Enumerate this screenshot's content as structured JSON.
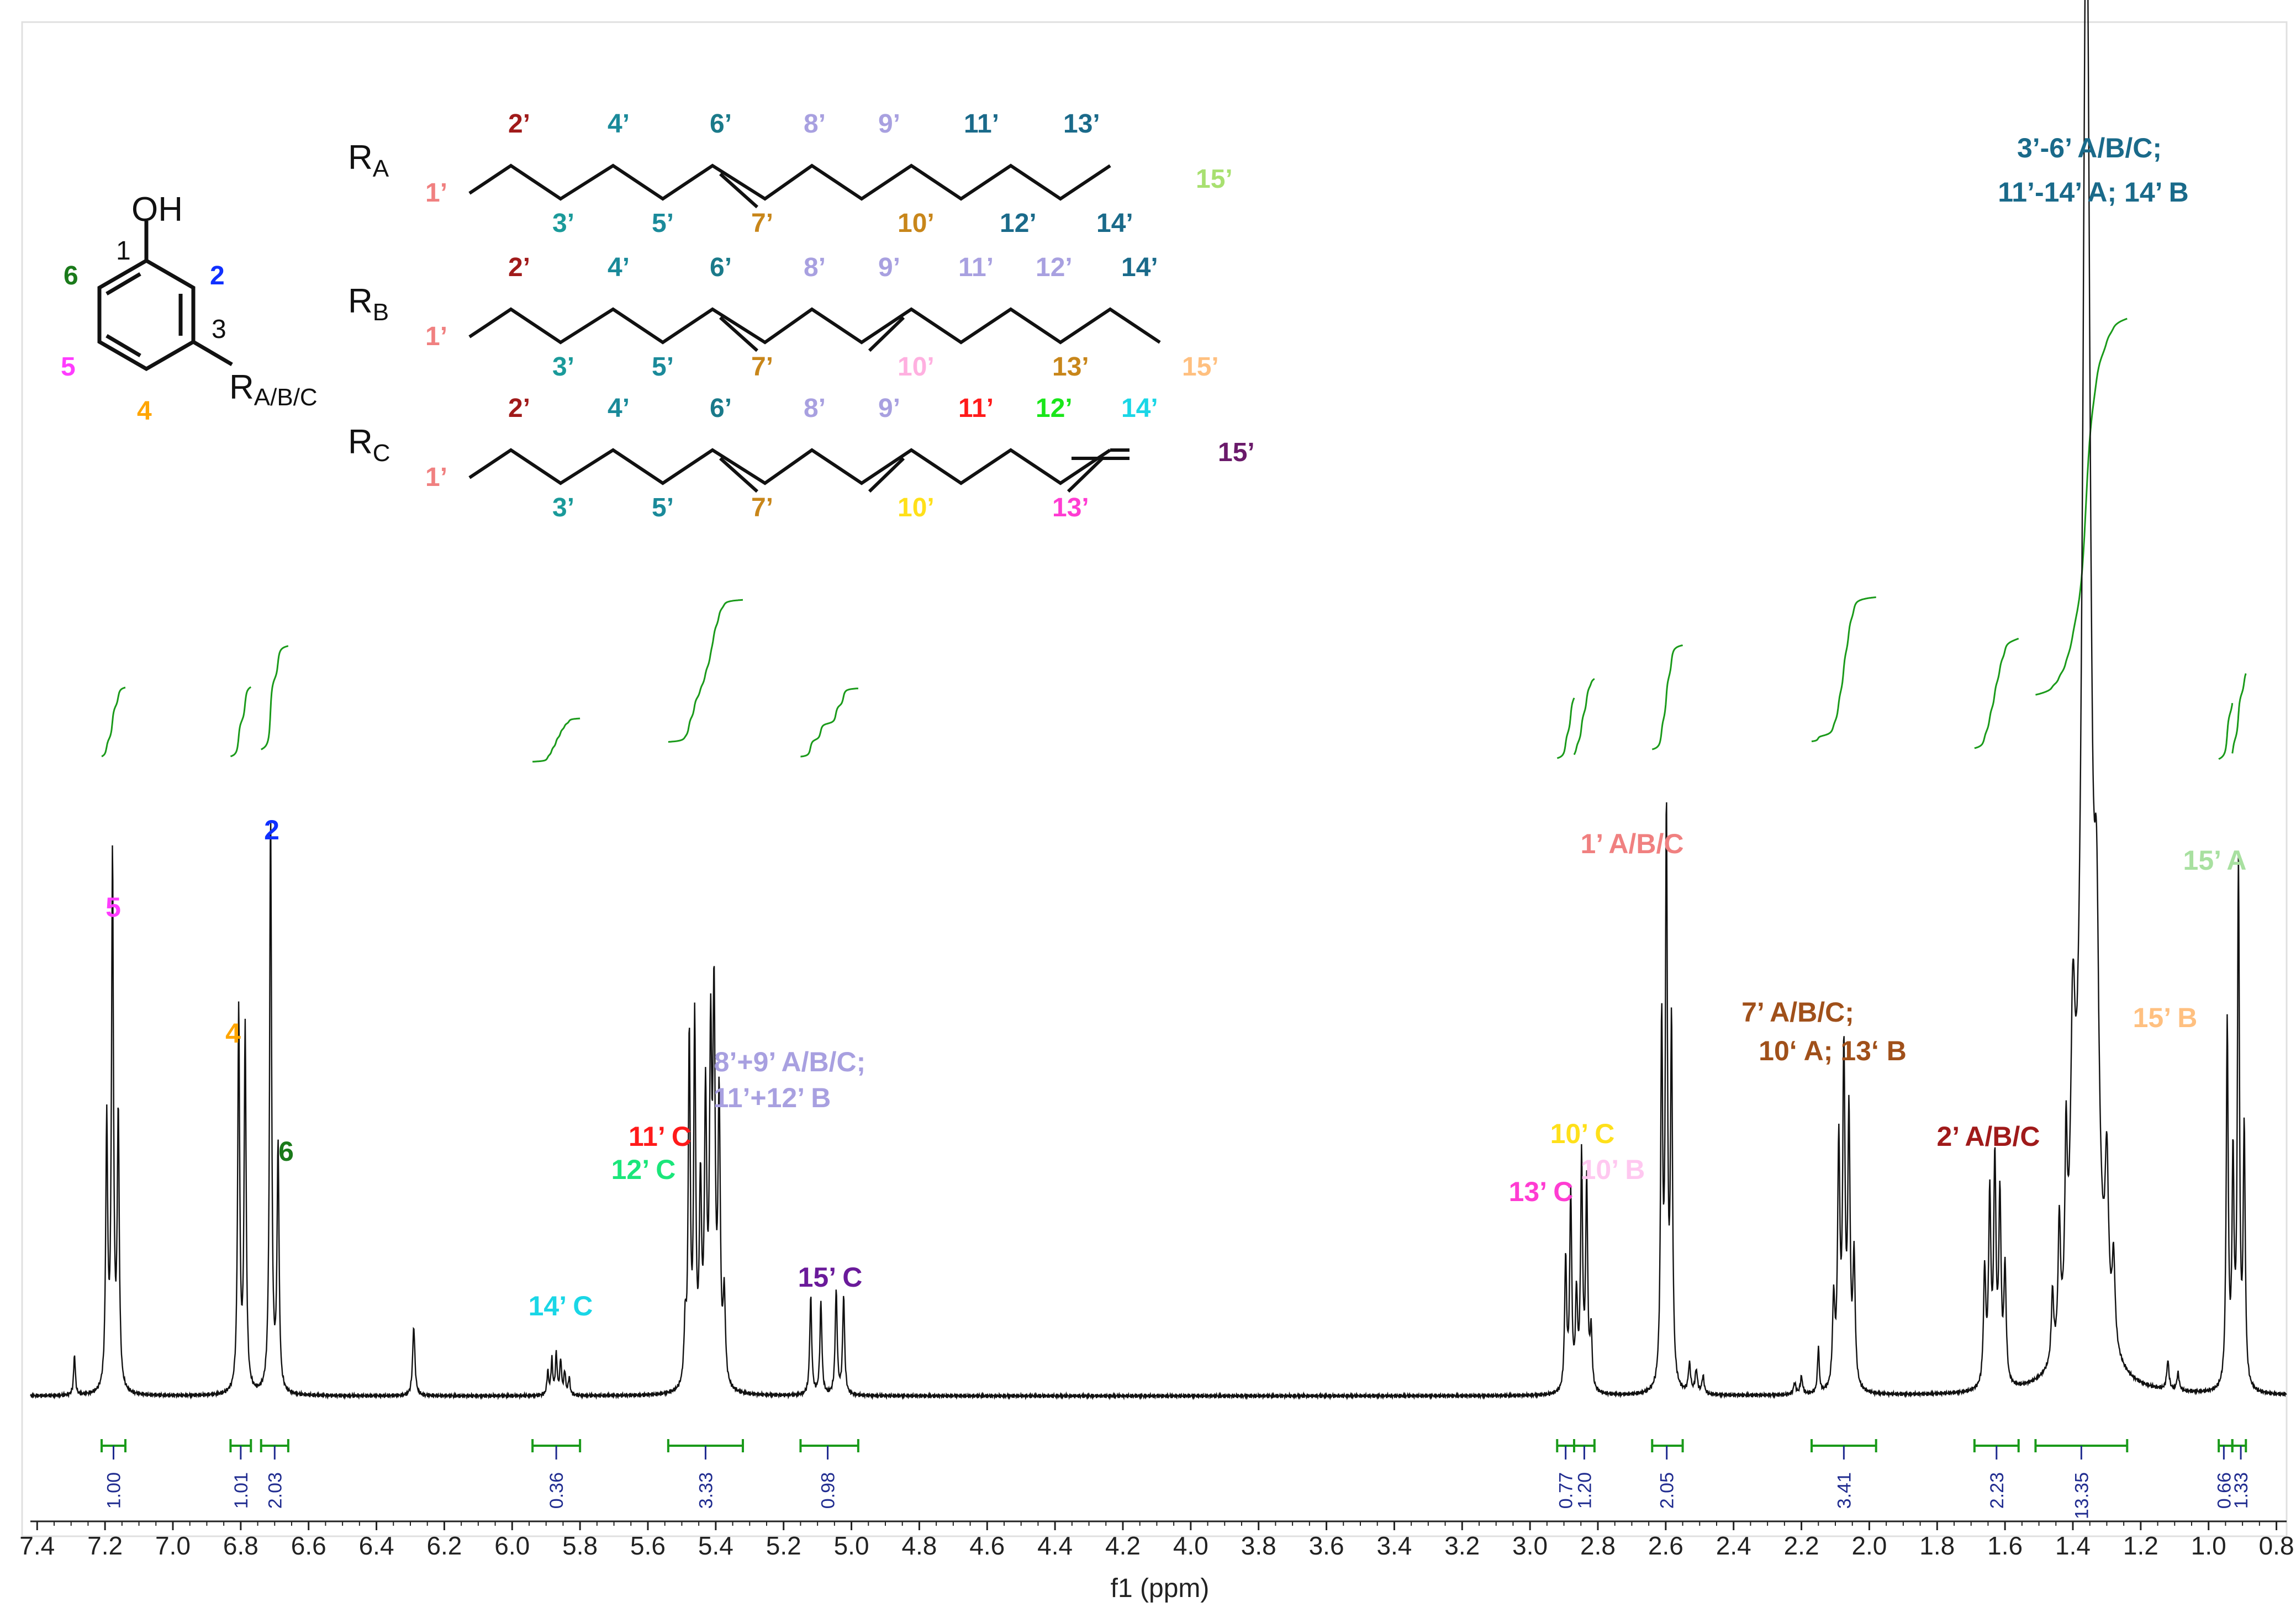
{
  "chart_data": {
    "type": "line",
    "xlabel": "f1 (ppm)",
    "xlim": [
      7.42,
      0.77
    ],
    "x_reversed": true,
    "x_ticks": [
      "7.4",
      "7.2",
      "7.0",
      "6.8",
      "6.6",
      "6.4",
      "6.2",
      "6.0",
      "5.8",
      "5.6",
      "5.4",
      "5.2",
      "5.0",
      "4.8",
      "4.6",
      "4.4",
      "4.2",
      "4.0",
      "3.8",
      "3.6",
      "3.4",
      "3.2",
      "3.0",
      "2.8",
      "2.6",
      "2.4",
      "2.2",
      "2.0",
      "1.8",
      "1.6",
      "1.4",
      "1.2",
      "1.0",
      "0.8"
    ],
    "peaks": [
      {
        "x": 7.29,
        "h": 0.07,
        "w": 0.003
      },
      {
        "x": 7.195,
        "h": 0.46,
        "w": 0.0035
      },
      {
        "x": 7.178,
        "h": 0.92,
        "w": 0.0035
      },
      {
        "x": 7.161,
        "h": 0.47,
        "w": 0.0035
      },
      {
        "x": 6.806,
        "h": 0.66,
        "w": 0.0035
      },
      {
        "x": 6.787,
        "h": 0.63,
        "w": 0.0035
      },
      {
        "x": 6.712,
        "h": 1.0,
        "w": 0.0035
      },
      {
        "x": 6.69,
        "h": 0.42,
        "w": 0.0035
      },
      {
        "x": 6.29,
        "h": 0.12,
        "w": 0.004
      },
      {
        "x": 5.895,
        "h": 0.04,
        "w": 0.003
      },
      {
        "x": 5.883,
        "h": 0.06,
        "w": 0.003
      },
      {
        "x": 5.87,
        "h": 0.07,
        "w": 0.003
      },
      {
        "x": 5.857,
        "h": 0.06,
        "w": 0.003
      },
      {
        "x": 5.845,
        "h": 0.04,
        "w": 0.003
      },
      {
        "x": 5.832,
        "h": 0.03,
        "w": 0.003
      },
      {
        "x": 5.49,
        "h": 0.1,
        "w": 0.004
      },
      {
        "x": 5.478,
        "h": 0.6,
        "w": 0.0035
      },
      {
        "x": 5.462,
        "h": 0.62,
        "w": 0.0035
      },
      {
        "x": 5.445,
        "h": 0.33,
        "w": 0.004
      },
      {
        "x": 5.43,
        "h": 0.48,
        "w": 0.004
      },
      {
        "x": 5.415,
        "h": 0.55,
        "w": 0.004
      },
      {
        "x": 5.405,
        "h": 0.63,
        "w": 0.004
      },
      {
        "x": 5.39,
        "h": 0.48,
        "w": 0.004
      },
      {
        "x": 5.375,
        "h": 0.15,
        "w": 0.004
      },
      {
        "x": 5.12,
        "h": 0.17,
        "w": 0.0035
      },
      {
        "x": 5.09,
        "h": 0.16,
        "w": 0.0035
      },
      {
        "x": 5.045,
        "h": 0.18,
        "w": 0.0035
      },
      {
        "x": 5.023,
        "h": 0.17,
        "w": 0.0035
      },
      {
        "x": 2.895,
        "h": 0.23,
        "w": 0.0035
      },
      {
        "x": 2.88,
        "h": 0.34,
        "w": 0.0035
      },
      {
        "x": 2.863,
        "h": 0.16,
        "w": 0.0035
      },
      {
        "x": 2.848,
        "h": 0.4,
        "w": 0.0035
      },
      {
        "x": 2.833,
        "h": 0.36,
        "w": 0.0035
      },
      {
        "x": 2.82,
        "h": 0.1,
        "w": 0.0035
      },
      {
        "x": 2.612,
        "h": 0.62,
        "w": 0.0035
      },
      {
        "x": 2.598,
        "h": 0.98,
        "w": 0.0035
      },
      {
        "x": 2.583,
        "h": 0.62,
        "w": 0.0035
      },
      {
        "x": 2.53,
        "h": 0.05,
        "w": 0.004
      },
      {
        "x": 2.51,
        "h": 0.04,
        "w": 0.004
      },
      {
        "x": 2.49,
        "h": 0.03,
        "w": 0.004
      },
      {
        "x": 2.22,
        "h": 0.02,
        "w": 0.004
      },
      {
        "x": 2.2,
        "h": 0.03,
        "w": 0.004
      },
      {
        "x": 2.15,
        "h": 0.08,
        "w": 0.003
      },
      {
        "x": 2.105,
        "h": 0.15,
        "w": 0.004
      },
      {
        "x": 2.09,
        "h": 0.41,
        "w": 0.004
      },
      {
        "x": 2.075,
        "h": 0.57,
        "w": 0.004
      },
      {
        "x": 2.06,
        "h": 0.46,
        "w": 0.004
      },
      {
        "x": 2.045,
        "h": 0.22,
        "w": 0.004
      },
      {
        "x": 1.66,
        "h": 0.2,
        "w": 0.004
      },
      {
        "x": 1.645,
        "h": 0.32,
        "w": 0.004
      },
      {
        "x": 1.63,
        "h": 0.38,
        "w": 0.004
      },
      {
        "x": 1.615,
        "h": 0.32,
        "w": 0.004
      },
      {
        "x": 1.6,
        "h": 0.2,
        "w": 0.004
      },
      {
        "x": 1.46,
        "h": 0.12,
        "w": 0.004
      },
      {
        "x": 1.44,
        "h": 0.22,
        "w": 0.004
      },
      {
        "x": 1.42,
        "h": 0.3,
        "w": 0.004
      },
      {
        "x": 1.4,
        "h": 0.45,
        "w": 0.008
      },
      {
        "x": 1.36,
        "h": 2.6,
        "w": 0.014
      },
      {
        "x": 1.33,
        "h": 0.5,
        "w": 0.008
      },
      {
        "x": 1.3,
        "h": 0.28,
        "w": 0.006
      },
      {
        "x": 1.28,
        "h": 0.15,
        "w": 0.005
      },
      {
        "x": 1.12,
        "h": 0.05,
        "w": 0.004
      },
      {
        "x": 1.09,
        "h": 0.03,
        "w": 0.004
      },
      {
        "x": 0.945,
        "h": 0.63,
        "w": 0.0035
      },
      {
        "x": 0.928,
        "h": 0.38,
        "w": 0.0035
      },
      {
        "x": 0.912,
        "h": 0.9,
        "w": 0.0035
      },
      {
        "x": 0.895,
        "h": 0.44,
        "w": 0.0035
      }
    ],
    "integrals": [
      {
        "from": 7.21,
        "to": 7.14,
        "value": "1.00",
        "x": 7.175
      },
      {
        "from": 6.83,
        "to": 6.77,
        "value": "1.01",
        "x": 6.8
      },
      {
        "from": 6.74,
        "to": 6.66,
        "value": "2.03",
        "x": 6.7
      },
      {
        "from": 5.94,
        "to": 5.8,
        "value": "0.36",
        "x": 5.87
      },
      {
        "from": 5.54,
        "to": 5.32,
        "value": "3.33",
        "x": 5.43
      },
      {
        "from": 5.15,
        "to": 4.98,
        "value": "0.98",
        "x": 5.07
      },
      {
        "from": 2.92,
        "to": 2.87,
        "value": "0.77",
        "x": 2.895
      },
      {
        "from": 2.87,
        "to": 2.81,
        "value": "1.20",
        "x": 2.84
      },
      {
        "from": 2.64,
        "to": 2.55,
        "value": "2.05",
        "x": 2.597
      },
      {
        "from": 2.17,
        "to": 1.98,
        "value": "3.41",
        "x": 2.075
      },
      {
        "from": 1.69,
        "to": 1.56,
        "value": "2.23",
        "x": 1.625
      },
      {
        "from": 1.51,
        "to": 1.24,
        "value": "13.35",
        "x": 1.375
      },
      {
        "from": 0.97,
        "to": 0.93,
        "value": "0.66",
        "x": 0.955
      },
      {
        "from": 0.93,
        "to": 0.89,
        "value": "1.33",
        "x": 0.905
      }
    ]
  },
  "peak_labels": [
    {
      "text": "5",
      "color": "#ff3cff"
    },
    {
      "text": "4",
      "color": "#ffa500"
    },
    {
      "text": "2",
      "color": "#1030ff"
    },
    {
      "text": "6",
      "color": "#1a7a1a"
    },
    {
      "text": "14’ C",
      "color": "#1ad6e6"
    },
    {
      "text": "11’ C",
      "color": "#ff1a1a"
    },
    {
      "text": "12’ C",
      "color": "#1ae67a"
    },
    {
      "text": "8’+9’ A/B/C;",
      "color": "#a8a0e0"
    },
    {
      "text": "11’+12’ B",
      "color": "#a8a0e0"
    },
    {
      "text": "15’ C",
      "color": "#6a1a9a"
    },
    {
      "text": "13’ C",
      "color": "#ff3cd2"
    },
    {
      "text": "10’ C",
      "color": "#ffe01a"
    },
    {
      "text": "10’ B",
      "color": "#ffc8f0"
    },
    {
      "text": "1’ A/B/C",
      "color": "#f08080"
    },
    {
      "text": "7’ A/B/C;",
      "color": "#a0501a"
    },
    {
      "text": "10‘ A; 13‘ B",
      "color": "#a0501a"
    },
    {
      "text": "2’ A/B/C",
      "color": "#a01a1a"
    },
    {
      "text": "3’-6’ A/B/C;",
      "color": "#1a6a8a"
    },
    {
      "text": "11’-14’ A; 14’ B",
      "color": "#1a6a8a"
    },
    {
      "text": "15’ A",
      "color": "#a8e0a0"
    },
    {
      "text": "15’ B",
      "color": "#ffc080"
    }
  ],
  "structure": {
    "oh": "OH",
    "ring_numbers": [
      {
        "text": "1",
        "color": "#111111"
      },
      {
        "text": "2",
        "color": "#1030ff"
      },
      {
        "text": "3",
        "color": "#111111"
      },
      {
        "text": "4",
        "color": "#ffa500"
      },
      {
        "text": "5",
        "color": "#ff3cff"
      },
      {
        "text": "6",
        "color": "#1a7a1a"
      }
    ],
    "r_main": "R",
    "r_main_sub": "A/B/C",
    "chains": [
      {
        "r": "R",
        "sub": "A",
        "top": [
          {
            "t": "2’",
            "c": "#a01a1a"
          },
          {
            "t": "4’",
            "c": "#1a8a9a"
          },
          {
            "t": "6’",
            "c": "#1a7a8a"
          },
          {
            "t": "8’",
            "c": "#a8a0e0"
          },
          {
            "t": "9’",
            "c": "#a8a0e0"
          },
          {
            "t": "11’",
            "c": "#1a6a8a"
          },
          {
            "t": "13’",
            "c": "#1a6a8a"
          },
          {
            "t": "15’",
            "c": "#a8e070"
          }
        ],
        "bottom": [
          {
            "t": "1’",
            "c": "#f08080"
          },
          {
            "t": "3’",
            "c": "#1a9a9a"
          },
          {
            "t": "5’",
            "c": "#1a8a9a"
          },
          {
            "t": "7’",
            "c": "#c8861a"
          },
          {
            "t": "10’",
            "c": "#c8861a"
          },
          {
            "t": "12’",
            "c": "#1a6a8a"
          },
          {
            "t": "14’",
            "c": "#1a6a8a"
          }
        ]
      },
      {
        "r": "R",
        "sub": "B",
        "top": [
          {
            "t": "2’",
            "c": "#a01a1a"
          },
          {
            "t": "4’",
            "c": "#1a8a9a"
          },
          {
            "t": "6’",
            "c": "#1a7a8a"
          },
          {
            "t": "8’",
            "c": "#a8a0e0"
          },
          {
            "t": "9’",
            "c": "#a8a0e0"
          },
          {
            "t": "11’",
            "c": "#a8a0e0"
          },
          {
            "t": "12’",
            "c": "#a8a0e0"
          },
          {
            "t": "14’",
            "c": "#1a6a8a"
          }
        ],
        "bottom": [
          {
            "t": "1’",
            "c": "#f08080"
          },
          {
            "t": "3’",
            "c": "#1a9a9a"
          },
          {
            "t": "5’",
            "c": "#1a8a9a"
          },
          {
            "t": "7’",
            "c": "#c8861a"
          },
          {
            "t": "10’",
            "c": "#ffb0e0"
          },
          {
            "t": "13’",
            "c": "#c8861a"
          },
          {
            "t": "15’",
            "c": "#ffc080"
          }
        ]
      },
      {
        "r": "R",
        "sub": "C",
        "top": [
          {
            "t": "2’",
            "c": "#a01a1a"
          },
          {
            "t": "4’",
            "c": "#1a8a9a"
          },
          {
            "t": "6’",
            "c": "#1a7a8a"
          },
          {
            "t": "8’",
            "c": "#a8a0e0"
          },
          {
            "t": "9’",
            "c": "#a8a0e0"
          },
          {
            "t": "11’",
            "c": "#ff1a1a"
          },
          {
            "t": "12’",
            "c": "#1ae61a"
          },
          {
            "t": "14’",
            "c": "#1ad6e6"
          },
          {
            "t": "15’",
            "c": "#6a1a6a"
          }
        ],
        "bottom": [
          {
            "t": "1’",
            "c": "#f08080"
          },
          {
            "t": "3’",
            "c": "#1a9a9a"
          },
          {
            "t": "5’",
            "c": "#1a8a9a"
          },
          {
            "t": "7’",
            "c": "#c8861a"
          },
          {
            "t": "10’",
            "c": "#ffe01a"
          },
          {
            "t": "13’",
            "c": "#ff3cd2"
          }
        ]
      }
    ]
  },
  "colors": {
    "spectrum": "#111111",
    "integral": "#1a9a1a",
    "integral_value": "#1f2b8f",
    "axis": "#222222"
  }
}
